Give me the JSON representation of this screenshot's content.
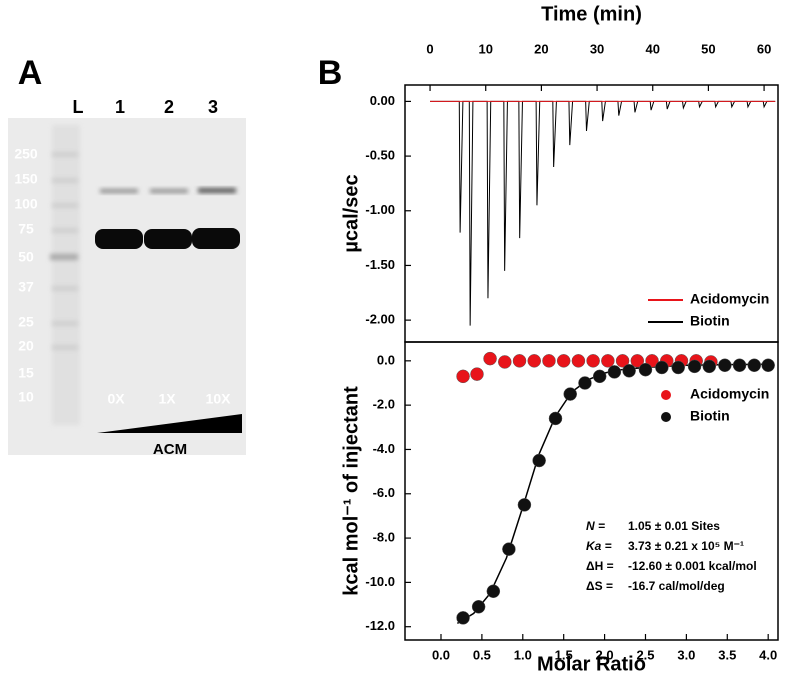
{
  "panel_a": {
    "letter": "A",
    "lanes": [
      "L",
      "1",
      "2",
      "3"
    ],
    "marker_sizes": [
      250,
      150,
      100,
      75,
      50,
      37,
      25,
      20,
      15,
      10
    ],
    "treatments": [
      "0X",
      "1X",
      "10X"
    ],
    "compound": "ACM"
  },
  "panel_b": {
    "letter": "B"
  },
  "chart_data": [
    {
      "type": "line",
      "xlabel": "Time (min)",
      "ylabel": "µcal/sec",
      "xlim": [
        -4.5,
        62.5
      ],
      "xticks": [
        0,
        10,
        20,
        30,
        40,
        50,
        60
      ],
      "ylim": [
        -2.2,
        0.15
      ],
      "yticks": [
        {
          "value": 0,
          "label": "0.00"
        },
        {
          "value": -0.5,
          "label": "-0.50"
        },
        {
          "value": -1,
          "label": "-1.00"
        },
        {
          "value": -1.5,
          "label": "-1.50"
        },
        {
          "value": -2,
          "label": "-2.00"
        }
      ],
      "legend": "lower right",
      "series": [
        {
          "name": "Acidomycin",
          "color": "#e8141a",
          "x": [
            0,
            62
          ],
          "values": [
            0,
            0
          ]
        },
        {
          "name": "Biotin",
          "color": "#000000",
          "x": [
            0,
            5.25,
            5.4,
            5.9,
            7.05,
            7.2,
            7.7,
            10.25,
            10.4,
            10.9,
            13.25,
            13.4,
            13.9,
            15.95,
            16.1,
            16.6,
            19.05,
            19.2,
            19.7,
            22.05,
            22.2,
            22.7,
            24.95,
            25.1,
            25.6,
            27.95,
            28.1,
            28.6,
            30.85,
            31,
            31.5,
            33.75,
            33.9,
            34.4,
            36.65,
            36.8,
            37.3,
            39.55,
            39.7,
            40.2,
            42.45,
            42.6,
            43.1,
            45.35,
            45.5,
            46,
            48.25,
            48.4,
            48.9,
            51.15,
            51.3,
            51.8,
            54.05,
            54.2,
            54.7,
            56.95,
            57.1,
            57.6,
            59.85,
            60,
            60.5,
            62
          ],
          "values": [
            0,
            0,
            -1.2,
            0,
            0,
            -2.05,
            0,
            0,
            -1.8,
            0,
            0,
            -1.55,
            0,
            0,
            -1.25,
            0,
            0,
            -0.95,
            0,
            0,
            -0.6,
            0,
            0,
            -0.4,
            0,
            0,
            -0.27,
            0,
            0,
            -0.18,
            0,
            0,
            -0.13,
            0,
            0,
            -0.1,
            0,
            0,
            -0.08,
            0,
            0,
            -0.07,
            0,
            0,
            -0.06,
            0,
            0,
            -0.05,
            0,
            0,
            -0.05,
            0,
            0,
            -0.05,
            0,
            0,
            -0.05,
            0,
            0,
            -0.05,
            0,
            0
          ]
        }
      ]
    },
    {
      "type": "scatter",
      "xlabel": "Molar Ratio",
      "ylabel": "kcal mol⁻¹ of injectant",
      "xlim": [
        -0.44,
        4.12
      ],
      "xticks": [
        {
          "value": 0,
          "label": "0.0"
        },
        0.5,
        {
          "value": 1,
          "label": "1.0"
        },
        1.5,
        {
          "value": 2,
          "label": "2.0"
        },
        2.5,
        {
          "value": 3,
          "label": "3.0"
        },
        3.5,
        {
          "value": 4,
          "label": "4.0"
        }
      ],
      "ylim": [
        -12.6,
        0.85
      ],
      "yticks": [
        {
          "value": 0,
          "label": "0.0"
        },
        {
          "value": -2,
          "label": "-2.0"
        },
        {
          "value": -4,
          "label": "-4.0"
        },
        {
          "value": -6,
          "label": "-6.0"
        },
        {
          "value": -8,
          "label": "-8.0"
        },
        {
          "value": -10,
          "label": "-10.0"
        },
        {
          "value": -12,
          "label": "-12.0"
        }
      ],
      "legend": "upper right",
      "series": [
        {
          "name": "Acidomycin",
          "color": "#e8141a",
          "x": [
            0.27,
            0.44,
            0.6,
            0.78,
            0.96,
            1.14,
            1.32,
            1.5,
            1.68,
            1.86,
            2.04,
            2.22,
            2.4,
            2.58,
            2.76,
            2.94,
            3.12,
            3.3
          ],
          "values": [
            -0.7,
            -0.6,
            0.1,
            -0.05,
            0,
            0,
            0,
            0,
            0,
            0,
            0,
            0,
            0,
            0,
            0,
            0,
            0,
            -0.05
          ]
        },
        {
          "name": "Biotin",
          "color": "#111111",
          "x": [
            0.27,
            0.46,
            0.64,
            0.83,
            1.02,
            1.2,
            1.4,
            1.58,
            1.76,
            1.94,
            2.12,
            2.3,
            2.5,
            2.7,
            2.9,
            3.1,
            3.28,
            3.47,
            3.65,
            3.83,
            4.0
          ],
          "values": [
            -11.6,
            -11.1,
            -10.4,
            -8.5,
            -6.5,
            -4.5,
            -2.6,
            -1.5,
            -1.0,
            -0.7,
            -0.5,
            -0.45,
            -0.4,
            -0.3,
            -0.3,
            -0.25,
            -0.25,
            -0.2,
            -0.2,
            -0.2,
            -0.2
          ]
        },
        {
          "color": "#000000",
          "mode": "line",
          "x": [
            0.2,
            0.4,
            0.6,
            0.8,
            1.0,
            1.2,
            1.4,
            1.6,
            1.8,
            2.0,
            2.2,
            2.5,
            3.0,
            3.5,
            4.0
          ],
          "values": [
            -11.85,
            -11.4,
            -10.5,
            -8.9,
            -6.6,
            -4.2,
            -2.5,
            -1.4,
            -0.85,
            -0.55,
            -0.4,
            -0.3,
            -0.2,
            -0.17,
            -0.15
          ]
        }
      ],
      "annotations": [
        {
          "label": "N =",
          "text": "1.05 ± 0.01 Sites"
        },
        {
          "label": "Ka =",
          "text": "3.73 ± 0.21 x 10⁵ M⁻¹"
        },
        {
          "label": "ΔH =",
          "text": "-12.60 ± 0.001 kcal/mol"
        },
        {
          "label": "ΔS =",
          "text": "-16.7 cal/mol/deg"
        }
      ]
    }
  ]
}
